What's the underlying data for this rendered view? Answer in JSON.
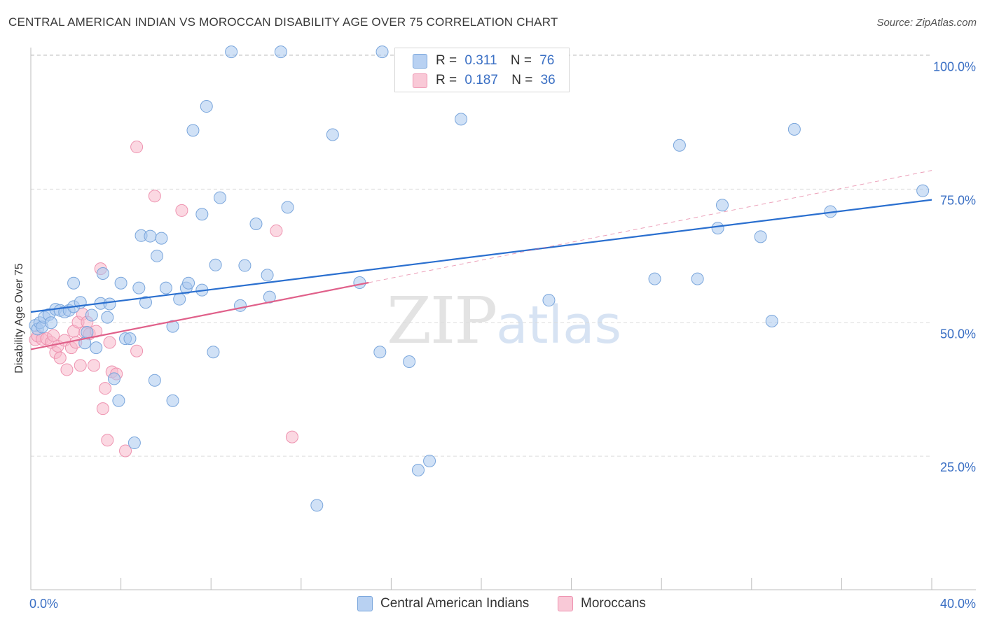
{
  "header": {
    "title": "CENTRAL AMERICAN INDIAN VS MOROCCAN DISABILITY AGE OVER 75 CORRELATION CHART",
    "source": "Source: ZipAtlas.com"
  },
  "watermark": {
    "zip": "ZIP",
    "atlas": "atlas"
  },
  "legend": {
    "series": [
      {
        "r_label": "R =",
        "r_value": "0.311",
        "n_label": "N =",
        "n_value": "76"
      },
      {
        "r_label": "R =",
        "r_value": "0.187",
        "n_label": "N =",
        "n_value": "36"
      }
    ]
  },
  "bottom_legend": [
    "Central American Indians",
    "Moroccans"
  ],
  "colors": {
    "blue_fill": "#a9c8ee",
    "blue_stroke": "#7aa6dc",
    "blue_line": "#2a6fcf",
    "pink_fill": "#f7b8cb",
    "pink_stroke": "#ee93b0",
    "pink_line": "#e0608a",
    "tick_label": "#3a6fc4",
    "grid": "#dcdcdc"
  },
  "chart_data": {
    "type": "scatter",
    "title": "CENTRAL AMERICAN INDIAN VS MOROCCAN DISABILITY AGE OVER 75 CORRELATION CHART",
    "xlabel": "",
    "ylabel": "Disability Age Over 75",
    "xlim": [
      0,
      40
    ],
    "ylim": [
      0,
      100
    ],
    "x_tick_labels": [
      "0.0%",
      "40.0%"
    ],
    "y_ticks": [
      25,
      50,
      75,
      100
    ],
    "y_tick_labels": [
      "25.0%",
      "50.0%",
      "75.0%",
      "100.0%"
    ],
    "grid": true,
    "legend_position": "top-center",
    "series": [
      {
        "name": "Central American Indians",
        "color": "#a9c8ee",
        "points": [
          [
            0.2,
            49.5
          ],
          [
            0.3,
            48.8
          ],
          [
            0.4,
            50.0
          ],
          [
            0.5,
            49.2
          ],
          [
            0.6,
            51.0
          ],
          [
            0.8,
            51.5
          ],
          [
            0.9,
            50.0
          ],
          [
            1.1,
            52.5
          ],
          [
            1.3,
            52.3
          ],
          [
            1.5,
            52.0
          ],
          [
            1.7,
            52.3
          ],
          [
            1.9,
            53.0
          ],
          [
            1.9,
            57.4
          ],
          [
            2.2,
            53.8
          ],
          [
            2.4,
            46.2
          ],
          [
            2.5,
            48.2
          ],
          [
            2.7,
            51.4
          ],
          [
            2.9,
            45.3
          ],
          [
            3.1,
            53.6
          ],
          [
            3.2,
            59.2
          ],
          [
            3.4,
            51.0
          ],
          [
            3.5,
            53.5
          ],
          [
            3.7,
            39.5
          ],
          [
            3.9,
            35.4
          ],
          [
            4.0,
            57.4
          ],
          [
            4.2,
            47.0
          ],
          [
            4.4,
            47.0
          ],
          [
            4.6,
            27.5
          ],
          [
            4.8,
            56.5
          ],
          [
            4.9,
            66.3
          ],
          [
            5.1,
            53.8
          ],
          [
            5.3,
            66.2
          ],
          [
            5.5,
            39.2
          ],
          [
            5.6,
            62.5
          ],
          [
            5.8,
            65.8
          ],
          [
            6.0,
            56.5
          ],
          [
            6.3,
            35.4
          ],
          [
            6.3,
            49.3
          ],
          [
            6.6,
            54.4
          ],
          [
            6.9,
            56.5
          ],
          [
            7.0,
            57.4
          ],
          [
            7.2,
            86.0
          ],
          [
            7.6,
            70.3
          ],
          [
            7.6,
            56.1
          ],
          [
            7.8,
            90.5
          ],
          [
            8.1,
            44.5
          ],
          [
            8.2,
            60.8
          ],
          [
            8.4,
            73.4
          ],
          [
            8.9,
            100.7
          ],
          [
            9.3,
            53.2
          ],
          [
            9.5,
            60.7
          ],
          [
            10.0,
            68.5
          ],
          [
            10.5,
            58.9
          ],
          [
            10.6,
            54.8
          ],
          [
            11.1,
            100.7
          ],
          [
            11.4,
            71.6
          ],
          [
            12.7,
            15.8
          ],
          [
            13.4,
            85.2
          ],
          [
            14.6,
            57.5
          ],
          [
            15.5,
            44.5
          ],
          [
            15.6,
            100.7
          ],
          [
            16.8,
            42.7
          ],
          [
            17.2,
            22.4
          ],
          [
            17.7,
            24.1
          ],
          [
            19.1,
            88.1
          ],
          [
            23.0,
            54.2
          ],
          [
            27.7,
            58.2
          ],
          [
            28.8,
            83.2
          ],
          [
            29.6,
            58.2
          ],
          [
            30.5,
            67.7
          ],
          [
            30.7,
            72.0
          ],
          [
            32.4,
            66.1
          ],
          [
            32.9,
            50.3
          ],
          [
            33.9,
            86.2
          ],
          [
            35.5,
            70.8
          ],
          [
            39.6,
            74.7
          ]
        ],
        "trend": [
          [
            0,
            52.0
          ],
          [
            40,
            73.0
          ]
        ]
      },
      {
        "name": "Moroccans",
        "color": "#f7b8cb",
        "points": [
          [
            0.2,
            46.8
          ],
          [
            0.3,
            47.5
          ],
          [
            0.5,
            46.9
          ],
          [
            0.7,
            47.0
          ],
          [
            0.9,
            46.3
          ],
          [
            1.0,
            47.6
          ],
          [
            1.1,
            44.4
          ],
          [
            1.2,
            45.6
          ],
          [
            1.3,
            43.4
          ],
          [
            1.5,
            46.7
          ],
          [
            1.6,
            41.2
          ],
          [
            1.8,
            45.3
          ],
          [
            1.9,
            48.4
          ],
          [
            2.0,
            46.3
          ],
          [
            2.1,
            50.1
          ],
          [
            2.2,
            42.0
          ],
          [
            2.3,
            51.6
          ],
          [
            2.4,
            48.2
          ],
          [
            2.5,
            50.1
          ],
          [
            2.6,
            47.9
          ],
          [
            2.8,
            42.0
          ],
          [
            2.9,
            48.4
          ],
          [
            3.1,
            60.1
          ],
          [
            3.2,
            33.9
          ],
          [
            3.3,
            37.7
          ],
          [
            3.4,
            28.0
          ],
          [
            3.5,
            46.3
          ],
          [
            3.6,
            40.8
          ],
          [
            3.8,
            40.4
          ],
          [
            4.2,
            26.0
          ],
          [
            4.7,
            44.7
          ],
          [
            4.7,
            82.9
          ],
          [
            5.5,
            73.7
          ],
          [
            6.7,
            71.0
          ],
          [
            10.9,
            67.2
          ],
          [
            11.6,
            28.6
          ]
        ],
        "trend": [
          [
            0,
            45.0
          ],
          [
            15,
            57.5
          ]
        ],
        "trend_extended": [
          [
            15,
            57.5
          ],
          [
            40,
            78.5
          ]
        ]
      }
    ]
  }
}
